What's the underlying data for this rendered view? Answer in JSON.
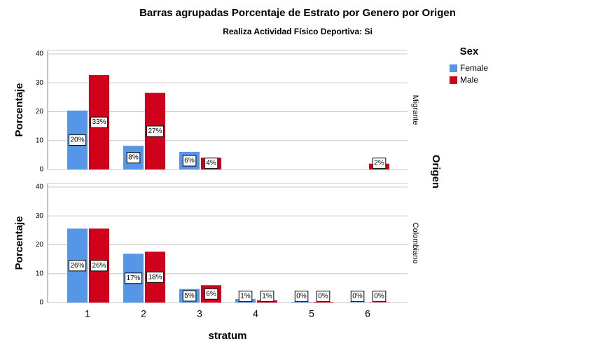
{
  "chart_data": {
    "type": "bar",
    "title": "Barras agrupadas Porcentaje de Estrato por Genero por Origen",
    "subtitle": "Realiza Actividad Físico Deportiva: Si",
    "x_label": "stratum",
    "y_label": "Porcentaje",
    "legend_title": "Sex",
    "facet_label": "Origen",
    "categories": [
      "1",
      "2",
      "3",
      "4",
      "5",
      "6"
    ],
    "series": [
      {
        "name": "Female",
        "color": "#5596e6"
      },
      {
        "name": "Male",
        "color": "#d0021b"
      }
    ],
    "ylim": [
      0,
      41.2
    ],
    "yticks": [
      0,
      10,
      20,
      30,
      40
    ],
    "grid": true,
    "panels": [
      {
        "name": "Migrante",
        "series": [
          {
            "values": [
              20.4,
              8.2,
              6.1,
              null,
              null,
              null
            ],
            "value_labels": [
              "20%",
              "8%",
              "6%",
              null,
              null,
              null
            ]
          },
          {
            "values": [
              32.7,
              26.5,
              4.1,
              null,
              null,
              2.0
            ],
            "value_labels": [
              "33%",
              "27%",
              "4%",
              null,
              null,
              "2%"
            ]
          }
        ]
      },
      {
        "name": "Colombiano",
        "series": [
          {
            "values": [
              25.6,
              16.9,
              4.7,
              1.2,
              0.2,
              0.1
            ],
            "value_labels": [
              "26%",
              "17%",
              "5%",
              "1%",
              "0%",
              "0%"
            ]
          },
          {
            "values": [
              25.6,
              17.6,
              6.0,
              0.8,
              0.2,
              0.1
            ],
            "value_labels": [
              "26%",
              "18%",
              "6%",
              "1%",
              "0%",
              "0%"
            ]
          }
        ]
      }
    ]
  }
}
